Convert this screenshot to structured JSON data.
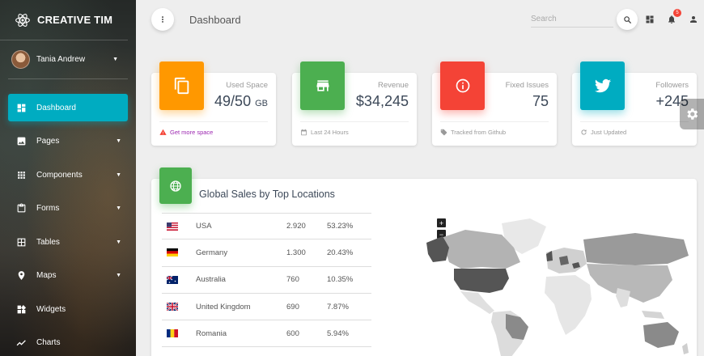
{
  "brand": {
    "name": "CREATIVE TIM"
  },
  "user": {
    "name": "Tania Andrew"
  },
  "sidebar": {
    "items": [
      {
        "label": "Dashboard",
        "icon": "dashboard-icon",
        "active": true
      },
      {
        "label": "Pages",
        "icon": "image-icon"
      },
      {
        "label": "Components",
        "icon": "apps-grid-icon"
      },
      {
        "label": "Forms",
        "icon": "clipboard-icon"
      },
      {
        "label": "Tables",
        "icon": "table-grid-icon"
      },
      {
        "label": "Maps",
        "icon": "map-pin-icon"
      },
      {
        "label": "Widgets",
        "icon": "widgets-icon"
      },
      {
        "label": "Charts",
        "icon": "trend-line-icon"
      }
    ]
  },
  "header": {
    "title": "Dashboard",
    "search_placeholder": "Search",
    "notification_count": "5"
  },
  "stats": [
    {
      "label": "Used Space",
      "value": "49/50",
      "unit": "GB",
      "footer": "Get more space",
      "color": "#ff9800"
    },
    {
      "label": "Revenue",
      "value": "$34,245",
      "unit": "",
      "footer": "Last 24 Hours",
      "color": "#4caf50"
    },
    {
      "label": "Fixed Issues",
      "value": "75",
      "unit": "",
      "footer": "Tracked from Github",
      "color": "#f44336"
    },
    {
      "label": "Followers",
      "value": "+245",
      "unit": "",
      "footer": "Just Updated",
      "color": "#00acc1"
    }
  ],
  "sales": {
    "title": "Global Sales by Top Locations",
    "rows": [
      {
        "country": "USA",
        "sales": "2.920",
        "percent": "53.23%"
      },
      {
        "country": "Germany",
        "sales": "1.300",
        "percent": "20.43%"
      },
      {
        "country": "Australia",
        "sales": "760",
        "percent": "10.35%"
      },
      {
        "country": "United Kingdom",
        "sales": "690",
        "percent": "7.87%"
      },
      {
        "country": "Romania",
        "sales": "600",
        "percent": "5.94%"
      }
    ],
    "zoom_in": "+",
    "zoom_out": "−"
  },
  "colors": {
    "accent": "#00acc1",
    "warning_link": "#9c27b0"
  }
}
